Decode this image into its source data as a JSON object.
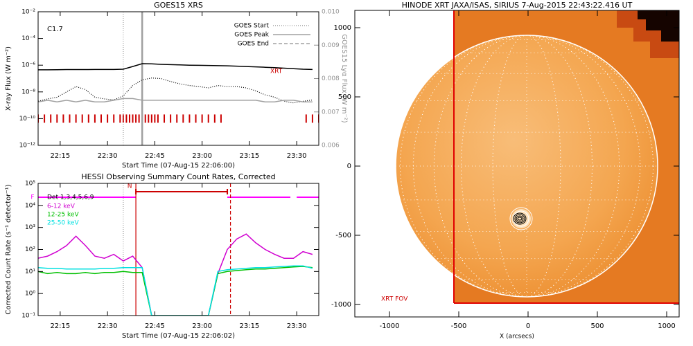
{
  "chart_data": [
    {
      "type": "line",
      "title": "GOES15 XRS",
      "x_label": "Start Time (07-Aug-15 22:06:00)",
      "y_label": "X-ray Flux (W m⁻²)",
      "y2_label": "GOES15 Lyα Flux (W m⁻²)",
      "log_y": true,
      "flare_class": "C1.7",
      "xlim": [
        "22:08",
        "23:37"
      ],
      "xticks": [
        "22:15",
        "22:30",
        "22:45",
        "23:00",
        "23:15",
        "23:30"
      ],
      "ylim": [
        1e-12,
        0.01
      ],
      "yticks": [
        {
          "value": 1e-12,
          "label": "10⁻¹²"
        },
        {
          "value": 1e-10,
          "label": "10⁻¹⁰"
        },
        {
          "value": 1e-08,
          "label": "10⁻⁸"
        },
        {
          "value": 1e-06,
          "label": "10⁻⁶"
        },
        {
          "value": 0.0001,
          "label": "10⁻⁴"
        },
        {
          "value": 0.01,
          "label": "10⁻²"
        }
      ],
      "y2lim": [
        0.006,
        0.01
      ],
      "y2ticks": [
        {
          "value": 0.006,
          "label": "0.006"
        },
        0.007,
        0.008,
        0.009,
        {
          "value": 0.01,
          "label": "0.010"
        }
      ],
      "x": [
        "22:08",
        "22:11",
        "22:14",
        "22:17",
        "22:20",
        "22:23",
        "22:26",
        "22:29",
        "22:32",
        "22:35",
        "22:38",
        "22:41",
        "22:44",
        "22:47",
        "22:50",
        "22:53",
        "22:56",
        "22:59",
        "23:02",
        "23:05",
        "23:08",
        "23:11",
        "23:14",
        "23:17",
        "23:20",
        "23:23",
        "23:26",
        "23:29",
        "23:32",
        "23:35"
      ],
      "series": [
        {
          "color": "#000000",
          "style": "solid",
          "values": [
            4.5e-07,
            4.5e-07,
            4.6e-07,
            4.7e-07,
            4.7e-07,
            4.7e-07,
            4.8e-07,
            4.8e-07,
            4.8e-07,
            5e-07,
            8e-07,
            1.3e-06,
            1.25e-06,
            1.15e-06,
            1.1e-06,
            1.05e-06,
            1e-06,
            9.8e-07,
            9.5e-07,
            9.2e-07,
            9e-07,
            8.5e-07,
            8e-07,
            7.5e-07,
            7e-07,
            6.5e-07,
            6e-07,
            5.5e-07,
            5e-07,
            4.8e-07
          ]
        },
        {
          "color": "#000000",
          "style": "dotted",
          "values": [
            2e-09,
            3e-09,
            4e-09,
            1e-08,
            2.5e-08,
            1.5e-08,
            4e-09,
            3e-09,
            2.5e-09,
            5e-09,
            3e-08,
            8e-08,
            1.1e-07,
            1e-07,
            6e-08,
            4e-08,
            3e-08,
            2.5e-08,
            2e-08,
            3e-08,
            2.5e-08,
            2.5e-08,
            2e-08,
            1.2e-08,
            6e-09,
            4e-09,
            2e-09,
            1.5e-09,
            2e-09,
            2.5e-09
          ]
        },
        {
          "color": "#a0a0a0",
          "style": "solid",
          "axis": "y2",
          "values": [
            0.0073,
            0.00735,
            0.0073,
            0.00735,
            0.0073,
            0.00735,
            0.0073,
            0.0073,
            0.00735,
            0.0074,
            0.0074,
            0.00735,
            0.00735,
            0.00735,
            0.00735,
            0.00735,
            0.00735,
            0.00735,
            0.00735,
            0.00735,
            0.00735,
            0.00735,
            0.00735,
            0.00735,
            0.0073,
            0.0073,
            0.00735,
            0.00735,
            0.0073,
            0.0073
          ]
        }
      ],
      "events": [
        {
          "name": "GOES Start",
          "x": "22:35",
          "style": "dotted",
          "color": "#a0a0a0"
        },
        {
          "name": "GOES Peak",
          "x": "22:41",
          "style": "solid",
          "color": "#a0a0a0"
        },
        {
          "name": "GOES End",
          "style": "dashed",
          "color": "#a0a0a0"
        }
      ],
      "observations": {
        "label": "XRT",
        "color": "#cc0000",
        "x": [
          "22:08",
          "22:10",
          "22:12",
          "22:14",
          "22:16",
          "22:18",
          "22:20",
          "22:22",
          "22:24",
          "22:26",
          "22:28",
          "22:30",
          "22:32",
          "22:34",
          "22:35",
          "22:36",
          "22:37",
          "22:38",
          "22:39",
          "22:40",
          "22:41",
          "22:42",
          "22:43",
          "22:44",
          "22:45",
          "22:46",
          "22:48",
          "22:50",
          "22:52",
          "22:54",
          "22:56",
          "22:58",
          "23:00",
          "23:02",
          "23:04",
          "23:06",
          "23:33",
          "23:35",
          "23:37"
        ]
      }
    },
    {
      "type": "line",
      "title": "HESSI Observing Summary Count Rates, Corrected",
      "x_label": "Start Time (07-Aug-15 22:06:02)",
      "y_label": "Corrected Count Rate (s⁻¹ detector⁻¹)",
      "legend_title": "Det 1,3,4,5,6,9",
      "log_y": true,
      "xlim": [
        "22:08",
        "23:37"
      ],
      "xticks": [
        "22:15",
        "22:30",
        "22:45",
        "23:00",
        "23:15",
        "23:30"
      ],
      "ylim": [
        0.1,
        100000
      ],
      "yticks": [
        {
          "value": 0.1,
          "label": "10⁻¹"
        },
        {
          "value": 1,
          "label": "10⁰"
        },
        {
          "value": 10,
          "label": "10¹"
        },
        {
          "value": 100,
          "label": "10²"
        },
        {
          "value": 1000,
          "label": "10³"
        },
        {
          "value": 10000,
          "label": "10⁴"
        },
        {
          "value": 100000,
          "label": "10⁵"
        }
      ],
      "x": [
        "22:08",
        "22:11",
        "22:14",
        "22:17",
        "22:20",
        "22:23",
        "22:26",
        "22:29",
        "22:32",
        "22:35",
        "22:38",
        "22:41",
        "22:44",
        "22:47",
        "22:50",
        "22:53",
        "22:56",
        "22:59",
        "23:02",
        "23:05",
        "23:08",
        "23:11",
        "23:14",
        "23:17",
        "23:20",
        "23:23",
        "23:26",
        "23:29",
        "23:32",
        "23:35"
      ],
      "series": [
        {
          "name": "6-12 keV",
          "color": "#d000d0",
          "values": [
            40,
            50,
            80,
            150,
            400,
            150,
            50,
            40,
            60,
            30,
            50,
            15,
            0.1,
            0.1,
            0.1,
            0.1,
            0.1,
            0.1,
            0.1,
            8,
            100,
            300,
            500,
            200,
            100,
            60,
            40,
            40,
            80,
            60
          ]
        },
        {
          "name": "12-25 keV",
          "color": "#00c000",
          "values": [
            10,
            8,
            9,
            8,
            8,
            9,
            8,
            9,
            9,
            10,
            9,
            9,
            0.1,
            0.1,
            0.1,
            0.1,
            0.1,
            0.1,
            0.1,
            8,
            10,
            11,
            12,
            13,
            13,
            14,
            15,
            16,
            17,
            15
          ]
        },
        {
          "name": "25-50 keV",
          "color": "#00e0e0",
          "values": [
            15,
            14,
            14,
            13,
            13,
            13,
            13,
            14,
            14,
            15,
            15,
            15,
            0.1,
            0.1,
            0.1,
            0.1,
            0.1,
            0.1,
            0.1,
            10,
            12,
            13,
            14,
            15,
            15,
            16,
            17,
            18,
            18,
            14
          ]
        }
      ],
      "flags": [
        {
          "label": "F",
          "color": "#ff00ff",
          "segments": [
            [
              "22:08",
              "22:39"
            ],
            [
              "23:08",
              "23:28"
            ],
            [
              "23:30",
              "23:37"
            ]
          ]
        },
        {
          "label": "N",
          "color": "#cc0000",
          "segments": [
            [
              "22:39",
              "23:08"
            ]
          ]
        }
      ],
      "markers": [
        {
          "x": "22:35",
          "style": "dotted",
          "color": "#a0a0a0"
        },
        {
          "x": "22:39",
          "style": "solid",
          "color": "#cc0000"
        },
        {
          "x": "23:09",
          "style": "dashed",
          "color": "#cc0000"
        }
      ]
    },
    {
      "type": "image",
      "title": "HINODE XRT JAXA/ISAS, SIRIUS  7-Aug-2015 22:43:22.416 UT",
      "x_label": "X (arcsecs)",
      "annotation": "XRT FOV",
      "xlim": [
        -1250,
        1090
      ],
      "xticks": [
        -1000,
        -500,
        0,
        500,
        1000
      ],
      "ylim": [
        -1090,
        1125
      ],
      "yticks": [
        -1000,
        -500,
        0,
        500,
        1000
      ]
    }
  ]
}
